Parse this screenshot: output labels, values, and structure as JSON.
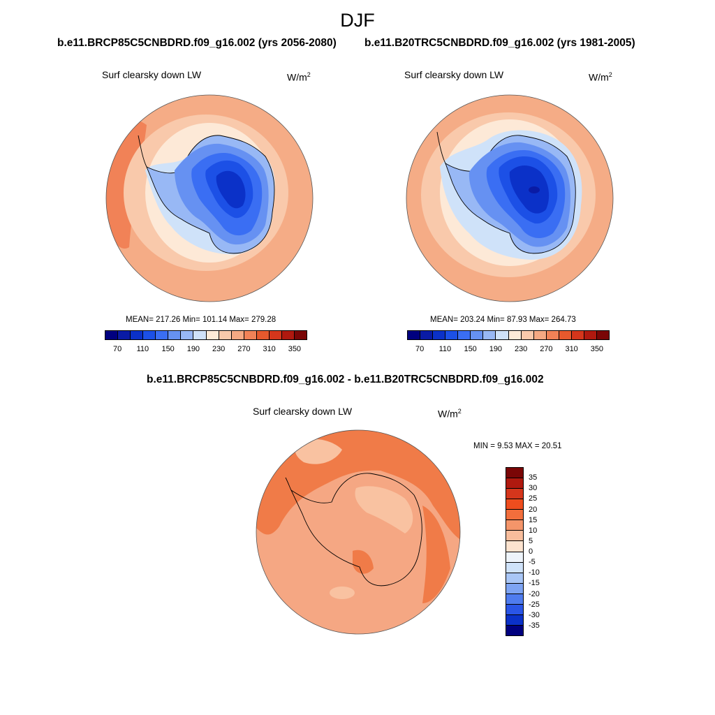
{
  "title": "DJF",
  "panels": {
    "left": {
      "case": "b.e11.BRCP85C5CNBDRD.f09_g16.002 (yrs 2056-2080)",
      "variable": "Surf clearsky down LW",
      "units": "W/m",
      "units_sup": "2",
      "stats": "MEAN= 217.26  Min= 101.14  Max= 279.28"
    },
    "right": {
      "case": "b.e11.B20TRC5CNBDRD.f09_g16.002 (yrs 1981-2005)",
      "variable": "Surf clearsky down LW",
      "units": "W/m",
      "units_sup": "2",
      "stats": "MEAN= 203.24  Min= 87.93  Max= 264.73"
    },
    "diff": {
      "case": "b.e11.BRCP85C5CNBDRD.f09_g16.002 - b.e11.B20TRC5CNBDRD.f09_g16.002",
      "variable": "Surf clearsky down LW",
      "units": "W/m",
      "units_sup": "2",
      "stats": "MIN =   9.53 MAX =  20.51"
    }
  },
  "abs_colorbar": {
    "labels": [
      "70",
      "110",
      "150",
      "190",
      "230",
      "270",
      "310",
      "350"
    ],
    "colors": [
      "#00007f",
      "#0a1ba5",
      "#0b31c8",
      "#1c50e6",
      "#3a6ef3",
      "#6691f2",
      "#98b8f5",
      "#cfe2f9",
      "#fdebd8",
      "#f9c9ab",
      "#f5a983",
      "#f18257",
      "#e6592d",
      "#d5361c",
      "#b0190f",
      "#7a0606"
    ]
  },
  "diff_colorbar": {
    "labels": [
      "35",
      "30",
      "25",
      "20",
      "15",
      "10",
      "5",
      "0",
      "-5",
      "-10",
      "-15",
      "-20",
      "-25",
      "-30",
      "-35"
    ],
    "colors": [
      "#7a0606",
      "#b0190f",
      "#d5361c",
      "#ee4d1e",
      "#f26e3c",
      "#f4956a",
      "#f8bd9c",
      "#fde3cf",
      "#eef4fb",
      "#cfe2f9",
      "#a9c6f6",
      "#7ea4f3",
      "#4f7cef",
      "#2a55e6",
      "#0b31c8",
      "#00007f"
    ]
  },
  "map_colors": {
    "outer_sea": "#f5ac86",
    "mid_sea": "#f9c9ab",
    "inner_sea": "#fde9d7",
    "ice_edge": "#cfe2f9",
    "ice_1": "#98b8f5",
    "ice_2": "#6691f2",
    "ice_3": "#3a6ef3",
    "ice_4": "#1c50e6",
    "ice_5": "#0b31c8",
    "ice_core": "#0a1ba5",
    "diff_base": "#f5a783",
    "diff_warm": "#f07b48",
    "diff_cool": "#f9c2a1"
  }
}
